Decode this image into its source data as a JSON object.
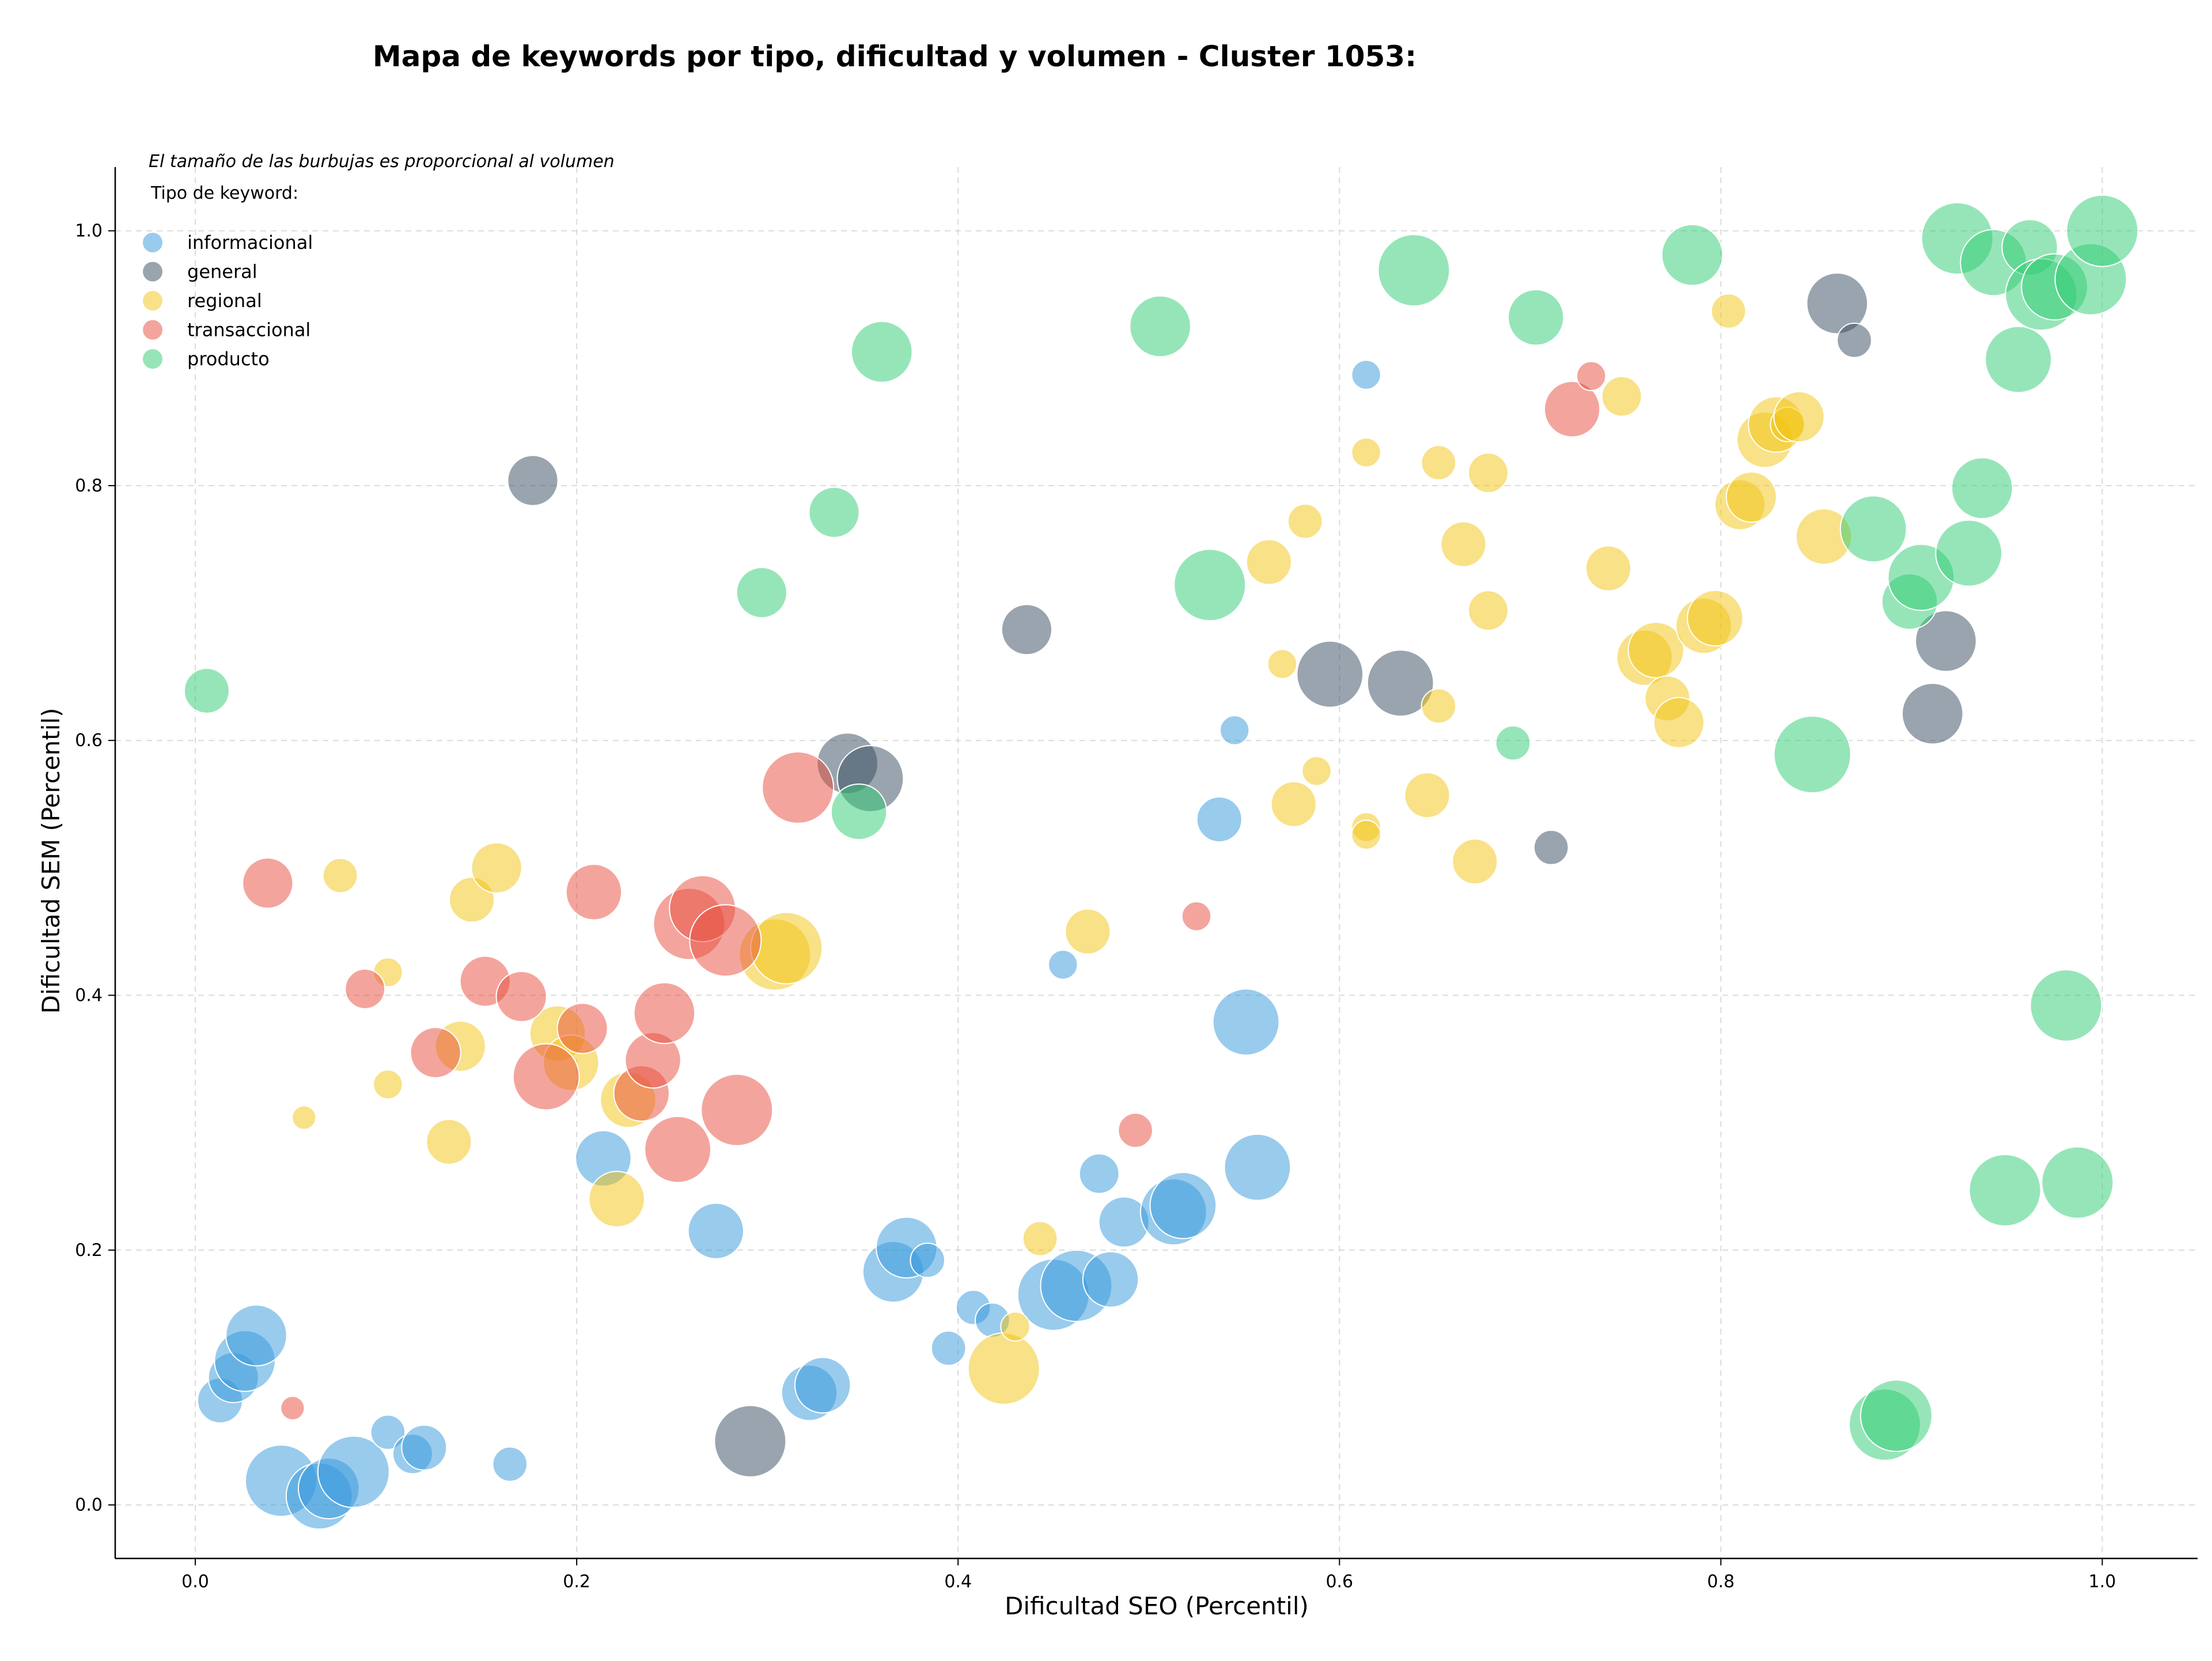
{
  "chart_data": {
    "type": "scatter",
    "title": "Mapa de keywords por tipo, dificultad y volumen - Cluster 1053:",
    "xlabel": "Dificultad SEO (Percentil)",
    "ylabel": "Dificultad SEM (Percentil)",
    "xlim": [
      -0.042,
      1.05
    ],
    "ylim": [
      -0.042,
      1.05
    ],
    "x_ticks": [
      "0.0",
      "0.2",
      "0.4",
      "0.6",
      "0.8",
      "1.0"
    ],
    "y_ticks": [
      "0.0",
      "0.2",
      "0.4",
      "0.6",
      "0.8",
      "1.0"
    ],
    "grid": true,
    "legend_placement": "top-left",
    "annotation": "El tamaño de las burbujas es proporcional al volumen",
    "legend_title": "Tipo de keyword:",
    "size_encoding": "volume (relative)",
    "series": [
      {
        "name": "informacional",
        "color": "#3498db",
        "points": [
          [
            0.013,
            0.082,
            5
          ],
          [
            0.02,
            0.1,
            6
          ],
          [
            0.026,
            0.113,
            8
          ],
          [
            0.032,
            0.133,
            8
          ],
          [
            0.045,
            0.019,
            10
          ],
          [
            0.065,
            0.007,
            9
          ],
          [
            0.07,
            0.013,
            8
          ],
          [
            0.083,
            0.026,
            10
          ],
          [
            0.101,
            0.057,
            3
          ],
          [
            0.114,
            0.04,
            4
          ],
          [
            0.12,
            0.045,
            5
          ],
          [
            0.165,
            0.032,
            3
          ],
          [
            0.214,
            0.272,
            7
          ],
          [
            0.273,
            0.215,
            7
          ],
          [
            0.322,
            0.088,
            7
          ],
          [
            0.329,
            0.094,
            7
          ],
          [
            0.366,
            0.183,
            8
          ],
          [
            0.373,
            0.202,
            8
          ],
          [
            0.384,
            0.192,
            3
          ],
          [
            0.395,
            0.123,
            3
          ],
          [
            0.408,
            0.155,
            3
          ],
          [
            0.418,
            0.145,
            3
          ],
          [
            0.45,
            0.165,
            10
          ],
          [
            0.462,
            0.172,
            10
          ],
          [
            0.474,
            0.26,
            4
          ],
          [
            0.48,
            0.177,
            7
          ],
          [
            0.487,
            0.222,
            6
          ],
          [
            0.513,
            0.23,
            9
          ],
          [
            0.518,
            0.235,
            9
          ],
          [
            0.455,
            0.424,
            2
          ],
          [
            0.537,
            0.538,
            5
          ],
          [
            0.545,
            0.608,
            2
          ],
          [
            0.551,
            0.379,
            9
          ],
          [
            0.557,
            0.265,
            9
          ],
          [
            0.614,
            0.887,
            2
          ]
        ]
      },
      {
        "name": "general",
        "color": "#34495e",
        "points": [
          [
            0.177,
            0.804,
            6
          ],
          [
            0.291,
            0.05,
            10
          ],
          [
            0.342,
            0.582,
            8
          ],
          [
            0.354,
            0.57,
            9
          ],
          [
            0.436,
            0.687,
            6
          ],
          [
            0.595,
            0.652,
            9
          ],
          [
            0.632,
            0.645,
            9
          ],
          [
            0.711,
            0.516,
            3
          ],
          [
            0.861,
            0.943,
            8
          ],
          [
            0.87,
            0.914,
            3
          ],
          [
            0.911,
            0.621,
            8
          ],
          [
            0.918,
            0.678,
            8
          ]
        ]
      },
      {
        "name": "regional",
        "color": "#f1c40f",
        "points": [
          [
            0.057,
            0.304,
            1
          ],
          [
            0.076,
            0.494,
            3
          ],
          [
            0.101,
            0.418,
            2
          ],
          [
            0.101,
            0.33,
            2
          ],
          [
            0.133,
            0.285,
            5
          ],
          [
            0.139,
            0.36,
            6
          ],
          [
            0.145,
            0.475,
            5
          ],
          [
            0.158,
            0.5,
            6
          ],
          [
            0.19,
            0.37,
            7
          ],
          [
            0.197,
            0.347,
            7
          ],
          [
            0.221,
            0.24,
            7
          ],
          [
            0.227,
            0.318,
            7
          ],
          [
            0.304,
            0.432,
            10
          ],
          [
            0.31,
            0.437,
            10
          ],
          [
            0.424,
            0.107,
            10
          ],
          [
            0.43,
            0.14,
            2
          ],
          [
            0.443,
            0.209,
            3
          ],
          [
            0.468,
            0.45,
            5
          ],
          [
            0.563,
            0.74,
            5
          ],
          [
            0.57,
            0.66,
            2
          ],
          [
            0.576,
            0.55,
            5
          ],
          [
            0.582,
            0.772,
            3
          ],
          [
            0.588,
            0.576,
            2
          ],
          [
            0.614,
            0.826,
            2
          ],
          [
            0.614,
            0.532,
            2
          ],
          [
            0.614,
            0.526,
            2
          ],
          [
            0.646,
            0.557,
            5
          ],
          [
            0.652,
            0.818,
            3
          ],
          [
            0.652,
            0.627,
            3
          ],
          [
            0.665,
            0.754,
            5
          ],
          [
            0.671,
            0.505,
            5
          ],
          [
            0.678,
            0.702,
            4
          ],
          [
            0.678,
            0.81,
            4
          ],
          [
            0.741,
            0.735,
            5
          ],
          [
            0.748,
            0.87,
            4
          ],
          [
            0.76,
            0.665,
            7
          ],
          [
            0.766,
            0.671,
            7
          ],
          [
            0.772,
            0.633,
            5
          ],
          [
            0.778,
            0.614,
            6
          ],
          [
            0.791,
            0.69,
            7
          ],
          [
            0.797,
            0.696,
            7
          ],
          [
            0.804,
            0.937,
            3
          ],
          [
            0.81,
            0.785,
            6
          ],
          [
            0.816,
            0.791,
            6
          ],
          [
            0.823,
            0.836,
            7
          ],
          [
            0.829,
            0.848,
            7
          ],
          [
            0.835,
            0.848,
            3
          ],
          [
            0.841,
            0.854,
            6
          ],
          [
            0.854,
            0.76,
            7
          ]
        ]
      },
      {
        "name": "transaccional",
        "color": "#e74c3c",
        "points": [
          [
            0.038,
            0.488,
            6
          ],
          [
            0.051,
            0.076,
            1
          ],
          [
            0.089,
            0.405,
            4
          ],
          [
            0.126,
            0.355,
            6
          ],
          [
            0.152,
            0.411,
            6
          ],
          [
            0.171,
            0.399,
            6
          ],
          [
            0.184,
            0.336,
            9
          ],
          [
            0.203,
            0.374,
            6
          ],
          [
            0.209,
            0.481,
            7
          ],
          [
            0.234,
            0.323,
            7
          ],
          [
            0.24,
            0.349,
            7
          ],
          [
            0.246,
            0.386,
            8
          ],
          [
            0.253,
            0.279,
            9
          ],
          [
            0.259,
            0.456,
            10
          ],
          [
            0.266,
            0.468,
            9
          ],
          [
            0.278,
            0.443,
            10
          ],
          [
            0.284,
            0.31,
            10
          ],
          [
            0.316,
            0.563,
            10
          ],
          [
            0.493,
            0.294,
            3
          ],
          [
            0.525,
            0.462,
            2
          ],
          [
            0.722,
            0.86,
            7
          ],
          [
            0.732,
            0.886,
            2
          ]
        ]
      },
      {
        "name": "producto",
        "color": "#2ecc71",
        "points": [
          [
            0.006,
            0.639,
            5
          ],
          [
            0.297,
            0.716,
            6
          ],
          [
            0.335,
            0.779,
            6
          ],
          [
            0.348,
            0.544,
            7
          ],
          [
            0.36,
            0.905,
            8
          ],
          [
            0.506,
            0.925,
            8
          ],
          [
            0.532,
            0.722,
            10
          ],
          [
            0.639,
            0.969,
            10
          ],
          [
            0.691,
            0.598,
            3
          ],
          [
            0.703,
            0.932,
            7
          ],
          [
            0.785,
            0.981,
            8
          ],
          [
            0.848,
            0.589,
            11
          ],
          [
            0.88,
            0.766,
            9
          ],
          [
            0.886,
            0.063,
            10
          ],
          [
            0.892,
            0.07,
            10
          ],
          [
            0.899,
            0.709,
            7
          ],
          [
            0.905,
            0.728,
            9
          ],
          [
            0.924,
            0.994,
            10
          ],
          [
            0.93,
            0.747,
            9
          ],
          [
            0.937,
            0.798,
            8
          ],
          [
            0.943,
            0.975,
            9
          ],
          [
            0.949,
            0.247,
            10
          ],
          [
            0.956,
            0.899,
            9
          ],
          [
            0.962,
            0.987,
            7
          ],
          [
            0.968,
            0.95,
            10
          ],
          [
            0.975,
            0.956,
            9
          ],
          [
            0.981,
            0.392,
            10
          ],
          [
            0.987,
            0.253,
            10
          ],
          [
            0.994,
            0.962,
            10
          ],
          [
            1.0,
            1.0,
            10
          ]
        ]
      }
    ]
  }
}
